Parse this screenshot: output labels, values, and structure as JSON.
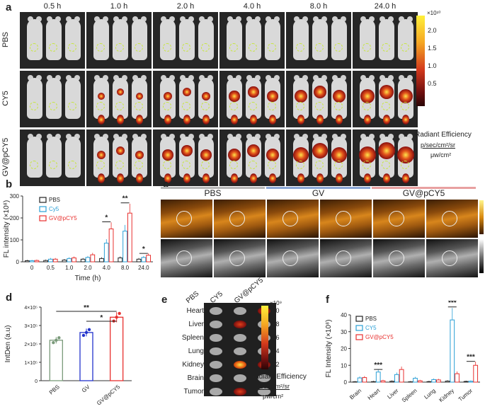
{
  "panels": {
    "a": {
      "label": "a",
      "times": [
        "0.5 h",
        "1.0 h",
        "2.0 h",
        "4.0 h",
        "8.0 h",
        "24.0 h"
      ],
      "groups": [
        "PBS",
        "CY5",
        "GV@pCY5"
      ],
      "colorbar": {
        "exponent": "×10¹⁰",
        "ticks": [
          "2.0",
          "1.5",
          "1.0",
          "0.5"
        ],
        "title": "Radiant Efficiency",
        "unit_num": "p/sec/cm²/sr",
        "unit_den": "μw/cm²"
      }
    },
    "b": {
      "label": "b"
    },
    "c": {
      "label": "c",
      "groups": [
        "PBS",
        "GV",
        "GV@pCY5"
      ],
      "group_colors": [
        "#b8b8b8",
        "#8aa6d6",
        "#e8a0a0"
      ]
    },
    "d": {
      "label": "d"
    },
    "e": {
      "label": "e",
      "columns": [
        "PBS",
        "CY5",
        "GV@pCY5"
      ],
      "organs": [
        "Heart",
        "Liver",
        "Spleen",
        "Lung",
        "Kidney",
        "Brain",
        "Tumor"
      ],
      "colorbar": {
        "exponent": "×10⁹",
        "ticks": [
          "1.0",
          "0.8",
          "0.6",
          "0.4",
          "0.2"
        ],
        "title": "Radiant Efficiency",
        "unit_num": "p/sec/cm²/sr",
        "unit_den": "μw/cm²"
      }
    },
    "f": {
      "label": "f"
    }
  },
  "chart_data": [
    {
      "id": "b",
      "type": "bar",
      "xlabel": "Time (h)",
      "ylabel": "FL intensity (×10⁸)",
      "ylim": [
        0,
        300
      ],
      "yticks": [
        0,
        100,
        200,
        300
      ],
      "categories": [
        "0",
        "0.5",
        "1.0",
        "2.0",
        "4.0",
        "8.0",
        "24.0"
      ],
      "series": [
        {
          "name": "PBS",
          "color": "#222222",
          "values": [
            5,
            6,
            8,
            12,
            15,
            18,
            12
          ]
        },
        {
          "name": "Cy5",
          "color": "#2a9fd6",
          "values": [
            5,
            12,
            15,
            20,
            85,
            140,
            20
          ]
        },
        {
          "name": "GV@pCY5",
          "color": "#e8302e",
          "values": [
            6,
            12,
            18,
            32,
            150,
            222,
            30
          ]
        }
      ],
      "annotations": [
        {
          "category": "4.0",
          "text": "*"
        },
        {
          "category": "8.0",
          "text": "**"
        },
        {
          "category": "24.0",
          "text": "*"
        }
      ],
      "legend": "top-left"
    },
    {
      "id": "d",
      "type": "bar",
      "ylabel": "IntDen (a.u)",
      "ylim": [
        0,
        400000
      ],
      "yticks": [
        "0",
        "1×10⁵",
        "2×10⁵",
        "3×10⁵",
        "4×10⁵"
      ],
      "categories": [
        "PBS",
        "GV",
        "GV@pCY5"
      ],
      "colors": [
        "#7a9a7a",
        "#2233cc",
        "#e8302e"
      ],
      "values": [
        220000,
        262000,
        345000
      ],
      "annotations": [
        {
          "from": "PBS",
          "to": "GV@pCY5",
          "text": "**"
        },
        {
          "from": "GV",
          "to": "GV@pCY5",
          "text": "*"
        }
      ]
    },
    {
      "id": "f",
      "type": "bar",
      "ylabel": "FL Intensity (×10⁸)",
      "ylim": [
        0,
        40
      ],
      "yticks": [
        0,
        10,
        20,
        30,
        40
      ],
      "categories": [
        "Brain",
        "Heart",
        "Liver",
        "Spleen",
        "Lung",
        "Kidney",
        "Tumor"
      ],
      "series": [
        {
          "name": "PBS",
          "color": "#222222",
          "values": [
            0.2,
            0.3,
            0.5,
            0.2,
            0.3,
            0.6,
            0.4
          ]
        },
        {
          "name": "CY5",
          "color": "#2a9fd6",
          "values": [
            2.5,
            6,
            4.5,
            2.3,
            1.5,
            37,
            0.5
          ]
        },
        {
          "name": "GV@pCY5",
          "color": "#e8302e",
          "values": [
            2.7,
            0.8,
            7.5,
            0.8,
            1.3,
            5,
            10
          ]
        }
      ],
      "annotations": [
        {
          "category": "Heart",
          "text": "***"
        },
        {
          "category": "Kidney",
          "text": "***"
        },
        {
          "category": "Tumor",
          "text": "***"
        }
      ],
      "legend": "top-left"
    }
  ]
}
